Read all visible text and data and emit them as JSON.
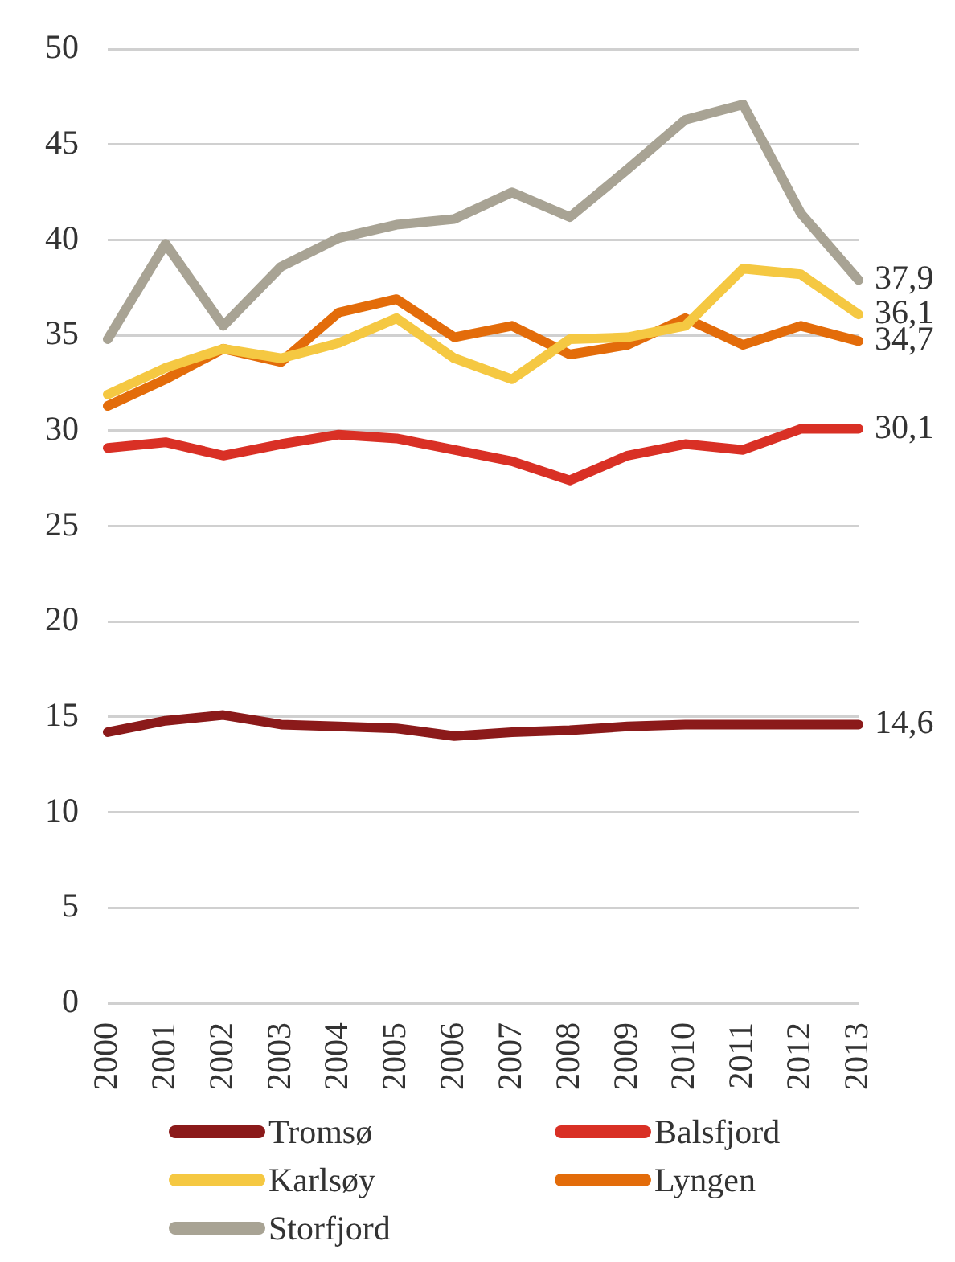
{
  "chart_data": {
    "type": "line",
    "categories": [
      "2000",
      "2001",
      "2002",
      "2003",
      "2004",
      "2005",
      "2006",
      "2007",
      "2008",
      "2009",
      "2010",
      "2011",
      "2012",
      "2013"
    ],
    "series": [
      {
        "name": "Tromsø",
        "color": "#8b1a1a",
        "values": [
          14.2,
          14.8,
          15.1,
          14.6,
          14.5,
          14.4,
          14.0,
          14.2,
          14.3,
          14.5,
          14.6,
          14.6,
          14.6,
          14.6
        ],
        "value_labels": [
          null,
          null,
          null,
          null,
          null,
          null,
          null,
          null,
          null,
          null,
          null,
          null,
          null,
          "14,6"
        ]
      },
      {
        "name": "Balsfjord",
        "color": "#d93025",
        "values": [
          29.1,
          29.4,
          28.7,
          29.3,
          29.8,
          29.6,
          29.0,
          28.4,
          27.4,
          28.7,
          29.3,
          29.0,
          30.1,
          30.1
        ],
        "value_labels": [
          null,
          null,
          null,
          null,
          null,
          null,
          null,
          null,
          null,
          null,
          null,
          null,
          null,
          "30,1"
        ]
      },
      {
        "name": "Karlsøy",
        "color": "#f5c842",
        "values": [
          31.9,
          33.3,
          34.3,
          33.8,
          34.6,
          35.9,
          33.8,
          32.7,
          34.8,
          34.9,
          35.5,
          38.5,
          38.2,
          36.1
        ],
        "value_labels": [
          null,
          null,
          null,
          null,
          null,
          null,
          null,
          null,
          null,
          null,
          null,
          null,
          null,
          "36,1"
        ]
      },
      {
        "name": "Lyngen",
        "color": "#e36c0a",
        "values": [
          31.3,
          32.7,
          34.3,
          33.6,
          36.2,
          36.9,
          34.9,
          35.5,
          34.0,
          34.5,
          35.9,
          34.5,
          35.5,
          34.7
        ],
        "value_labels": [
          null,
          null,
          null,
          null,
          null,
          null,
          null,
          null,
          null,
          null,
          null,
          null,
          null,
          "34,7"
        ]
      },
      {
        "name": "Storfjord",
        "color": "#a8a394",
        "values": [
          34.8,
          39.8,
          35.5,
          38.6,
          40.1,
          40.8,
          41.1,
          42.5,
          41.2,
          43.7,
          46.3,
          47.1,
          41.4,
          37.9
        ],
        "value_labels": [
          null,
          null,
          null,
          null,
          null,
          null,
          null,
          null,
          null,
          null,
          null,
          null,
          null,
          "37,9"
        ]
      }
    ],
    "ylim": [
      0,
      50
    ],
    "yticks": [
      0,
      5,
      10,
      15,
      20,
      25,
      30,
      35,
      40,
      45,
      50
    ],
    "grid": "y",
    "legend": "bottom",
    "marker": "none",
    "line_style": "solid"
  }
}
